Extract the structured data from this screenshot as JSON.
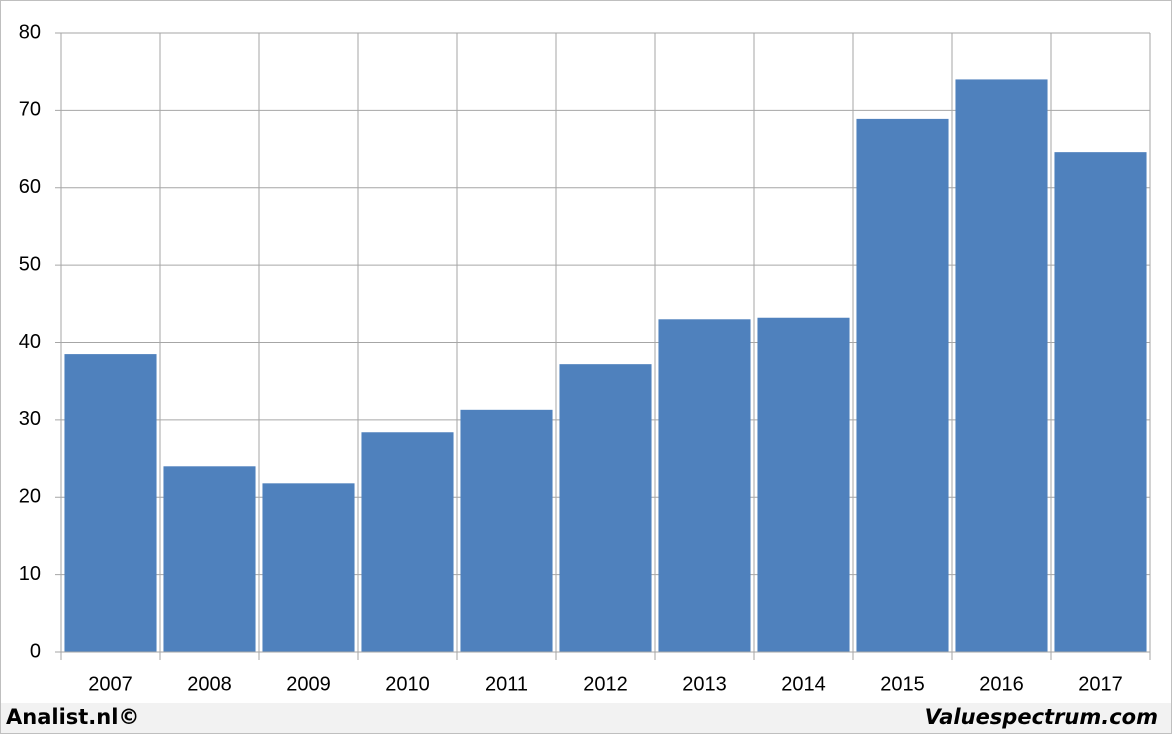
{
  "chart_data": {
    "type": "bar",
    "categories": [
      "2007",
      "2008",
      "2009",
      "2010",
      "2011",
      "2012",
      "2013",
      "2014",
      "2015",
      "2016",
      "2017"
    ],
    "values": [
      38.5,
      24.0,
      21.8,
      28.4,
      31.3,
      37.2,
      43.0,
      43.2,
      68.9,
      74.0,
      64.6
    ],
    "color": "#4f81bd",
    "ylim": [
      0,
      80
    ],
    "yticks": [
      0,
      10,
      20,
      30,
      40,
      50,
      60,
      70,
      80
    ],
    "grid": true
  },
  "footer": {
    "left": "Analist.nl©",
    "right": "Valuespectrum.com"
  }
}
